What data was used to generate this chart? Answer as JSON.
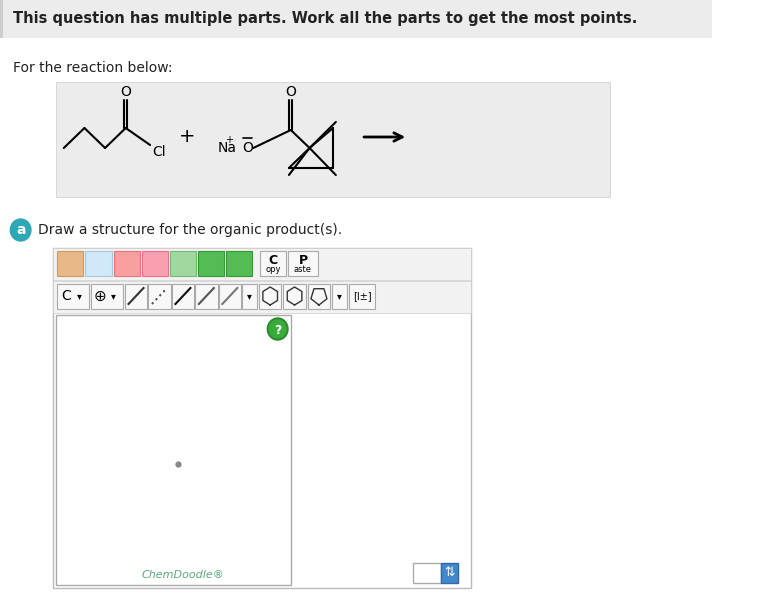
{
  "bg_color": "#ececec",
  "white": "#ffffff",
  "header_text": "This question has multiple parts. Work all the parts to get the most points.",
  "for_reaction_text": "For the reaction below:",
  "part_a_text": "Draw a structure for the organic product(s).",
  "chemdoodle_text": "ChemDoodle®",
  "teal_circle_color": "#2fa8b5",
  "green_text_color": "#5aaa7a",
  "dark_text": "#222222",
  "gray_dot_color": "#999999",
  "question_mark_bg": "#2a8a2a",
  "question_mark_color": "#ffffff",
  "drawing_border": "#aaaaaa",
  "fig_w": 7.59,
  "fig_h": 6.06,
  "dpi": 100
}
